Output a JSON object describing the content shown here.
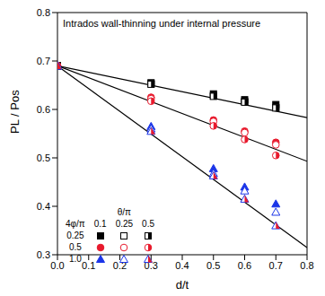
{
  "chart_data": {
    "type": "scatter",
    "annotation": "Intrados wall-thinning under internal pressure",
    "x_label": "d/t",
    "y_label": "PL / Pos",
    "xlim": [
      0,
      0.8
    ],
    "xticks": [
      {
        "value": 0,
        "label": "0.0"
      },
      0.1,
      0.2,
      0.3,
      0.4,
      0.5,
      0.6,
      0.7,
      0.8
    ],
    "ylim": [
      0.3,
      0.8
    ],
    "yticks": [
      0.3,
      0.4,
      0.5,
      0.6,
      0.7,
      0.8
    ],
    "grid": false,
    "legend": {
      "column_title": "θ/π",
      "columns": [
        "0.1",
        "0.25",
        "0.5"
      ],
      "row_title": "4φ/π",
      "rows": [
        "0.25",
        "0.5",
        "1.0"
      ]
    },
    "series": [
      {
        "marker": "square-filled",
        "color": "#000000",
        "x": [
          0,
          0.3,
          0.5,
          0.6,
          0.7
        ],
        "values": [
          0.69,
          0.655,
          0.632,
          0.62,
          0.61
        ]
      },
      {
        "marker": "square-open",
        "color": "#000000",
        "x": [
          0,
          0.3,
          0.5,
          0.6,
          0.7
        ],
        "values": [
          0.69,
          0.653,
          0.628,
          0.616,
          0.604
        ]
      },
      {
        "marker": "square-half",
        "color": "#000000",
        "x": [
          0,
          0.3,
          0.5,
          0.6,
          0.7
        ],
        "values": [
          0.69,
          0.652,
          0.627,
          0.615,
          0.603
        ]
      },
      {
        "marker": "circle-filled",
        "color": "#e8192c",
        "x": [
          0,
          0.3,
          0.5,
          0.6,
          0.7
        ],
        "values": [
          0.69,
          0.625,
          0.578,
          0.555,
          0.532
        ]
      },
      {
        "marker": "circle-open",
        "color": "#e8192c",
        "x": [
          0,
          0.3,
          0.5,
          0.6,
          0.7
        ],
        "values": [
          0.69,
          0.622,
          0.575,
          0.552,
          0.527
        ]
      },
      {
        "marker": "circle-half",
        "color": "#e8192c",
        "x": [
          0,
          0.3,
          0.5,
          0.6,
          0.7
        ],
        "values": [
          0.69,
          0.617,
          0.566,
          0.538,
          0.505
        ]
      },
      {
        "marker": "triangle-filled",
        "color": "#1b35e8",
        "x": [
          0,
          0.3,
          0.5,
          0.6,
          0.7
        ],
        "values": [
          0.69,
          0.565,
          0.478,
          0.44,
          0.405
        ]
      },
      {
        "marker": "triangle-open",
        "color": "#1b35e8",
        "x": [
          0,
          0.3,
          0.5,
          0.6,
          0.7
        ],
        "values": [
          0.69,
          0.56,
          0.468,
          0.432,
          0.388
        ]
      },
      {
        "marker": "triangle-half",
        "color": "#e8192c",
        "x": [
          0,
          0.3,
          0.5,
          0.6,
          0.7
        ],
        "values": [
          0.69,
          0.555,
          0.463,
          0.415,
          0.36
        ]
      },
      {
        "type": "line",
        "line_style": "solid",
        "color": "#000000",
        "x": [
          0,
          0.8
        ],
        "values": [
          0.69,
          0.583
        ]
      },
      {
        "type": "line",
        "line_style": "solid",
        "color": "#000000",
        "x": [
          0,
          0.8
        ],
        "values": [
          0.69,
          0.493
        ]
      },
      {
        "type": "line",
        "line_style": "solid",
        "color": "#000000",
        "x": [
          0,
          0.8
        ],
        "values": [
          0.69,
          0.315
        ]
      }
    ]
  }
}
